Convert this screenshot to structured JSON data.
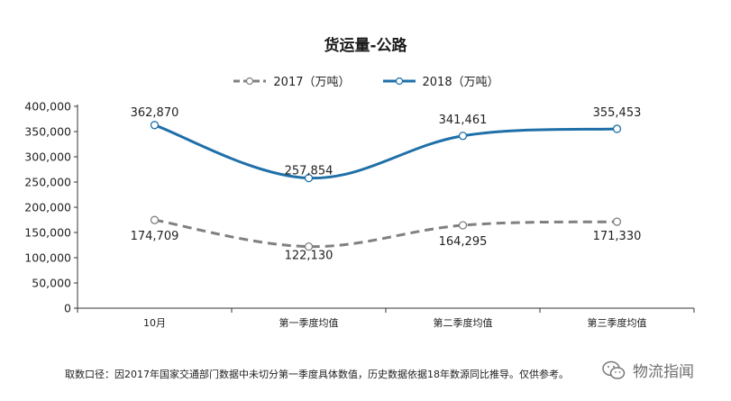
{
  "chart_data": {
    "type": "line",
    "title": "货运量-公路",
    "categories": [
      "10月",
      "第一季度均值",
      "第二季度均值",
      "第三季度均值"
    ],
    "ylim": [
      0,
      400000
    ],
    "yticks": [
      0,
      50000,
      100000,
      150000,
      200000,
      250000,
      300000,
      350000,
      400000
    ],
    "ytick_labels": [
      "0",
      "50,000",
      "100,000",
      "150,000",
      "200,000",
      "250,000",
      "300,000",
      "350,000",
      "400,000"
    ],
    "legend_position": "top-center",
    "grid": false,
    "series": [
      {
        "name": "2017（万吨）",
        "values": [
          174709,
          122130,
          164295,
          171330
        ],
        "labels": [
          "174,709",
          "122,130",
          "164,295",
          "171,330"
        ],
        "color": "#808080",
        "style": "dashed"
      },
      {
        "name": "2018（万吨）",
        "values": [
          362870,
          257854,
          341461,
          355453
        ],
        "labels": [
          "362,870",
          "257,854",
          "341,461",
          "355,453"
        ],
        "color": "#1f6fa8",
        "style": "solid"
      }
    ]
  },
  "footnote": "取数口径：因2017年国家交通部门数据中未切分第一季度具体数值，历史数据依据18年数源同比推导。仅供参考。",
  "watermark": {
    "icon": "wechat-icon",
    "text": "物流指闻"
  }
}
